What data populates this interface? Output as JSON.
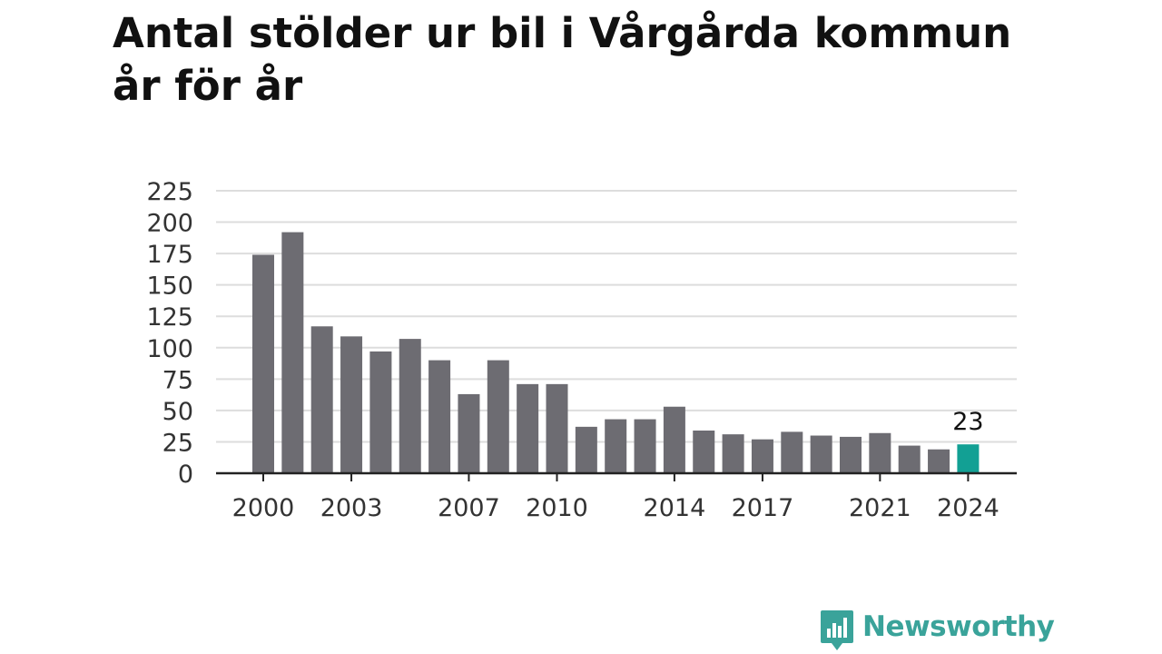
{
  "title_line1": "Antal stölder ur bil i Vårgårda kommun",
  "title_line2": "år för år",
  "brand": {
    "name": "Newsworthy",
    "color": "#3aa39a"
  },
  "colors": {
    "bar": "#6d6c72",
    "highlight": "#12a094",
    "grid": "#dddddd",
    "axis": "#222222",
    "text": "#333333"
  },
  "chart_data": {
    "type": "bar",
    "categories": [
      "2000",
      "2001",
      "2002",
      "2003",
      "2004",
      "2005",
      "2006",
      "2007",
      "2008",
      "2009",
      "2010",
      "2011",
      "2012",
      "2013",
      "2014",
      "2015",
      "2016",
      "2017",
      "2018",
      "2019",
      "2020",
      "2021",
      "2022",
      "2023",
      "2024"
    ],
    "values": [
      174,
      192,
      117,
      109,
      97,
      107,
      90,
      63,
      90,
      71,
      71,
      37,
      43,
      43,
      53,
      34,
      31,
      27,
      33,
      30,
      29,
      32,
      22,
      19,
      23
    ],
    "xticks": [
      "2000",
      "2003",
      "2007",
      "2010",
      "2014",
      "2017",
      "2021",
      "2024"
    ],
    "yticks": [
      0,
      25,
      50,
      75,
      100,
      125,
      150,
      175,
      200,
      225
    ],
    "ylim": [
      0,
      225
    ],
    "highlight": {
      "category": "2024",
      "label": "23"
    },
    "grid": true,
    "xlabel": "",
    "ylabel": ""
  }
}
